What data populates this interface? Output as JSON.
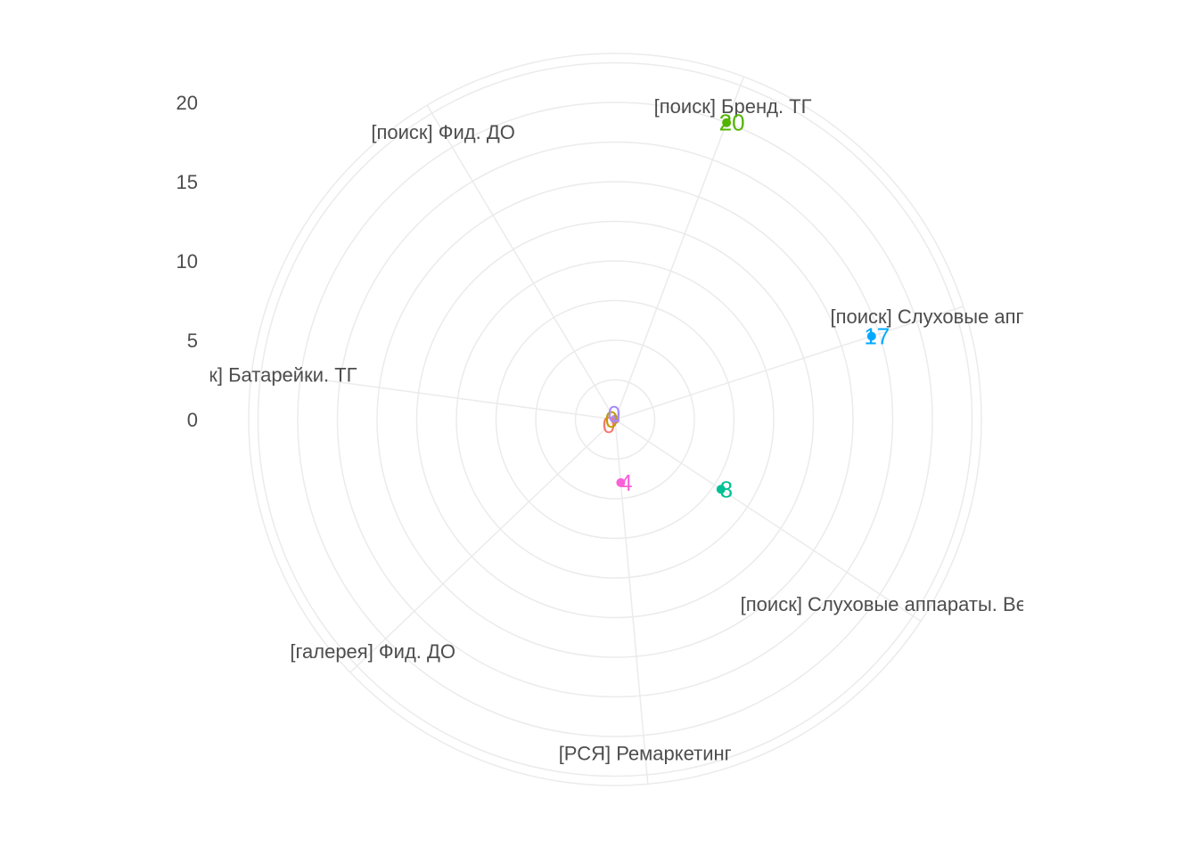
{
  "chart_data": {
    "type": "radar",
    "title": "",
    "categories": [
      "[поиск] Бренд. ТГ",
      "[поиск] Слуховые аппа",
      "[поиск] Слуховые аппараты. Венд",
      "[РСЯ] Ремаркетинг",
      "[галерея] Фид. ДО",
      "к] Батарейки. ТГ",
      "[поиск] Фид. ДО"
    ],
    "values": [
      20,
      17,
      8,
      4,
      0,
      0,
      0
    ],
    "value_labels": [
      "20",
      "17",
      "8",
      "4",
      "0",
      "0",
      "0"
    ],
    "colors": [
      "#53b400",
      "#00a9ff",
      "#00c094",
      "#fb61d7",
      "#f8766d",
      "#c49a00",
      "#a58aff"
    ],
    "r_axis": {
      "ticks": [
        0,
        5,
        10,
        15,
        20
      ],
      "tick_labels": [
        "0",
        "5",
        "10",
        "15",
        "20"
      ],
      "range": [
        0,
        20
      ],
      "grid": true
    },
    "legend": "none"
  }
}
